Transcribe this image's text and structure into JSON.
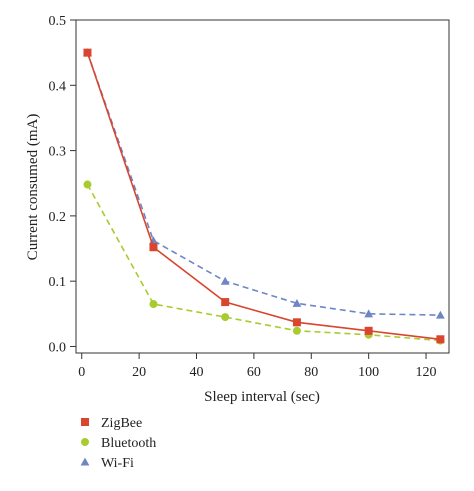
{
  "chart_data": {
    "type": "line",
    "title": "",
    "xlabel": "Sleep interval (sec)",
    "ylabel": "Current consumed (mA)",
    "xlim": [
      -2,
      128
    ],
    "ylim": [
      -0.01,
      0.5
    ],
    "xticks": [
      0,
      20,
      40,
      60,
      80,
      100,
      120
    ],
    "yticks": [
      0.0,
      0.1,
      0.2,
      0.3,
      0.4,
      0.5
    ],
    "xtick_labels": [
      "0",
      "20",
      "40",
      "60",
      "80",
      "100",
      "120"
    ],
    "ytick_labels": [
      "0.0",
      "0.1",
      "0.2",
      "0.3",
      "0.4",
      "0.5"
    ],
    "grid": false,
    "legend_position": "bottom-left, below plot",
    "x": [
      2,
      25,
      50,
      75,
      100,
      125
    ],
    "series": [
      {
        "name": "ZigBee",
        "values": [
          0.45,
          0.152,
          0.068,
          0.037,
          0.024,
          0.011
        ],
        "color": "#d9452f",
        "marker": "square",
        "line_style": "solid"
      },
      {
        "name": "Bluetooth",
        "values": [
          0.248,
          0.065,
          0.045,
          0.024,
          0.018,
          0.009
        ],
        "color": "#a8cc2e",
        "marker": "circle",
        "line_style": "dashed"
      },
      {
        "name": "Wi-Fi",
        "values": [
          0.45,
          0.162,
          0.1,
          0.066,
          0.05,
          0.048
        ],
        "color": "#6f86c4",
        "marker": "triangle",
        "line_style": "dashed"
      }
    ]
  }
}
